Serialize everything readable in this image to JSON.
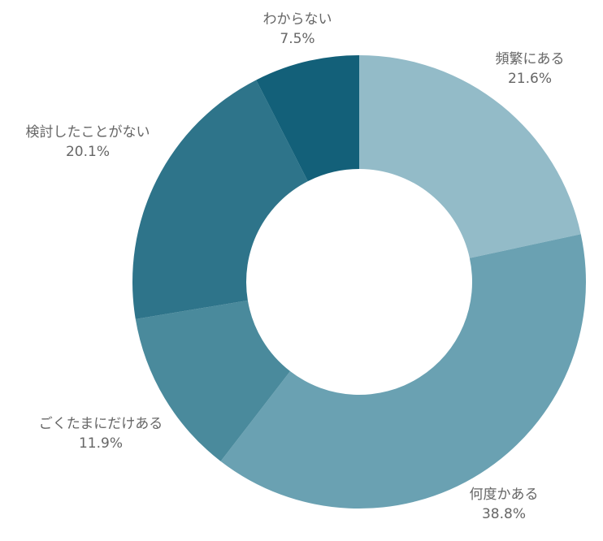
{
  "chart_data": {
    "type": "pie",
    "donut": true,
    "start_angle_deg": 0,
    "direction": "clockwise",
    "title": "",
    "legend": "none",
    "slices": [
      {
        "label": "頻繁にある",
        "value": 21.6,
        "value_label": "21.6%",
        "color": "#93bbc8"
      },
      {
        "label": "何度かある",
        "value": 38.8,
        "value_label": "38.8%",
        "color": "#6aa1b2"
      },
      {
        "label": "ごくたまにだけある",
        "value": 11.9,
        "value_label": "11.9%",
        "color": "#4a8a9c"
      },
      {
        "label": "検討したことがない",
        "value": 20.1,
        "value_label": "20.1%",
        "color": "#2e748a"
      },
      {
        "label": "わからない",
        "value": 7.5,
        "value_label": "7.5%",
        "color": "#136079"
      }
    ]
  }
}
